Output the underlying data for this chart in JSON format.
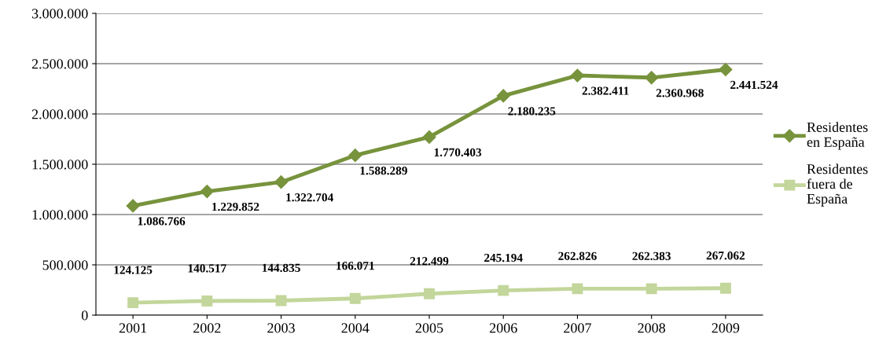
{
  "chart_data": {
    "type": "line",
    "categories": [
      "2001",
      "2002",
      "2003",
      "2004",
      "2005",
      "2006",
      "2007",
      "2008",
      "2009"
    ],
    "series": [
      {
        "name": "Residentes\nen España",
        "color": "#77933c",
        "marker": "diamond",
        "values": [
          1086766,
          1229852,
          1322704,
          1588289,
          1770403,
          2180235,
          2382411,
          2360968,
          2441524
        ],
        "value_labels": [
          "1.086.766",
          "1.229.852",
          "1.322.704",
          "1.588.289",
          "1.770.403",
          "2.180.235",
          "2.382.411",
          "2.360.968",
          "2.441.524"
        ]
      },
      {
        "name": "Residentes\nfuera de\nEspaña",
        "color": "#c3d69b",
        "marker": "square",
        "values": [
          124125,
          140517,
          144835,
          166071,
          212499,
          245194,
          262826,
          262383,
          267062
        ],
        "value_labels": [
          "124.125",
          "140.517",
          "144.835",
          "166.071",
          "212.499",
          "245.194",
          "262.826",
          "262.383",
          "267.062"
        ]
      }
    ],
    "ylim": [
      0,
      3000000
    ],
    "yticks": [
      {
        "value": 0,
        "label": "0"
      },
      {
        "value": 500000,
        "label": "500.000"
      },
      {
        "value": 1000000,
        "label": "1.000.000"
      },
      {
        "value": 1500000,
        "label": "1.500.000"
      },
      {
        "value": 2000000,
        "label": "2.000.000"
      },
      {
        "value": 2500000,
        "label": "2.500.000"
      },
      {
        "value": 3000000,
        "label": "3.000.000"
      }
    ],
    "grid": "y",
    "legend": "right"
  }
}
